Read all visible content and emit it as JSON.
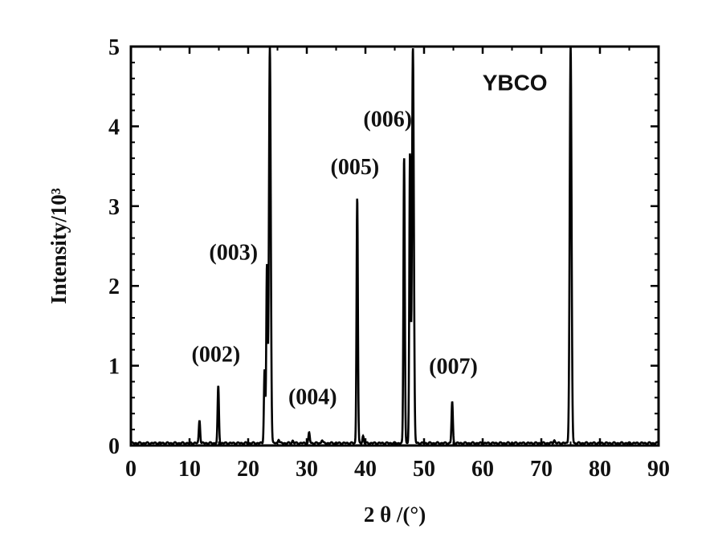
{
  "chart_data": {
    "type": "line",
    "title": "",
    "xlabel": "2 θ /(°)",
    "ylabel": "Intensity/10³",
    "xlim": [
      0,
      90
    ],
    "ylim": [
      0,
      5
    ],
    "xticks": [
      "0",
      "10",
      "20",
      "30",
      "40",
      "50",
      "60",
      "70",
      "80",
      "90"
    ],
    "yticks": [
      "0",
      "1",
      "2",
      "3",
      "4",
      "5"
    ],
    "grid": false,
    "legend_label": "YBCO",
    "legend_position": "top-right",
    "series": [
      {
        "name": "YBCO",
        "color": "#000000",
        "baseline": 0.03,
        "peaks": [
          {
            "x": 11.7,
            "y": 0.32
          },
          {
            "x": 14.9,
            "y": 0.74
          },
          {
            "x": 22.8,
            "y": 0.95
          },
          {
            "x": 23.2,
            "y": 2.25
          },
          {
            "x": 23.7,
            "y": 5.0
          },
          {
            "x": 25.2,
            "y": 0.08
          },
          {
            "x": 27.6,
            "y": 0.06
          },
          {
            "x": 30.4,
            "y": 0.16
          },
          {
            "x": 32.6,
            "y": 0.07
          },
          {
            "x": 38.6,
            "y": 3.12
          },
          {
            "x": 39.6,
            "y": 0.12
          },
          {
            "x": 46.6,
            "y": 3.63
          },
          {
            "x": 47.6,
            "y": 3.65
          },
          {
            "x": 48.1,
            "y": 5.0
          },
          {
            "x": 54.8,
            "y": 0.55
          },
          {
            "x": 72.2,
            "y": 0.07
          },
          {
            "x": 75.0,
            "y": 5.0
          }
        ]
      }
    ],
    "annotations": [
      {
        "text": "(002)",
        "x": 14.5,
        "y": 1.05
      },
      {
        "text": "(003)",
        "x": 17.5,
        "y": 2.33
      },
      {
        "text": "(004)",
        "x": 31.0,
        "y": 0.52
      },
      {
        "text": "(005)",
        "x": 38.2,
        "y": 3.4
      },
      {
        "text": "(006)",
        "x": 43.8,
        "y": 4.0
      },
      {
        "text": "(007)",
        "x": 55.0,
        "y": 0.9
      }
    ]
  }
}
